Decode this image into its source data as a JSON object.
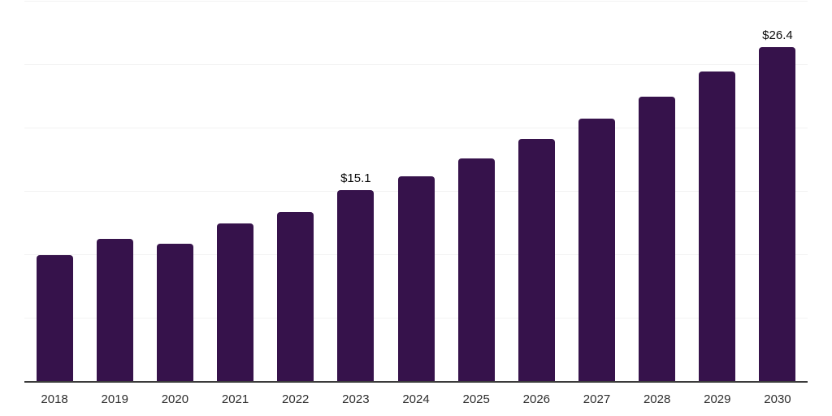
{
  "chart_data": {
    "type": "bar",
    "title": "",
    "xlabel": "",
    "ylabel": "",
    "categories": [
      "2018",
      "2019",
      "2020",
      "2021",
      "2022",
      "2023",
      "2024",
      "2025",
      "2026",
      "2027",
      "2028",
      "2029",
      "2030"
    ],
    "values": [
      10.0,
      11.3,
      10.9,
      12.5,
      13.4,
      15.1,
      16.2,
      17.6,
      19.2,
      20.8,
      22.5,
      24.5,
      26.4
    ],
    "point_labels": {
      "2023": "$15.1",
      "2030": "$26.4"
    },
    "ylim": [
      0,
      30
    ],
    "gridline_interval": 5,
    "grid": true,
    "legend": false,
    "colors": {
      "bar": "#36124B",
      "gridline": "#f2f2f2",
      "axis_line": "#3b3b3b",
      "tick_label": "#2e2e2e",
      "value_label": "#0b0b0b"
    }
  }
}
